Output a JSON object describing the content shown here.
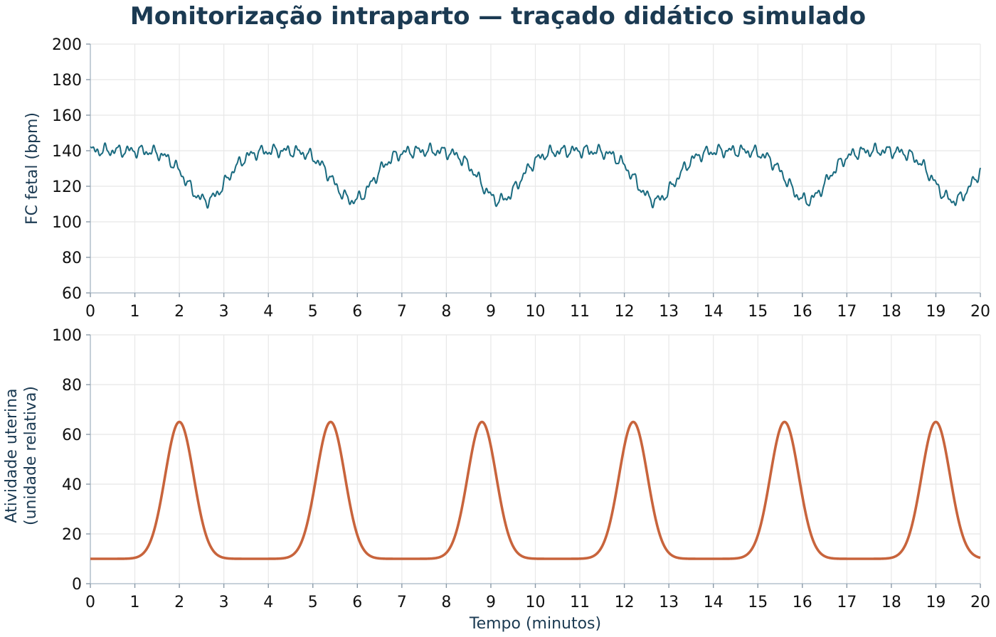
{
  "title": "Monitorização intraparto — traçado didático simulado",
  "colors": {
    "fhr": "#1a6b80",
    "uterine": "#c8643c",
    "title": "#1b3a52"
  },
  "chart_data": [
    {
      "type": "line",
      "ylabel": "FC fetal (bpm)",
      "xlabel": "",
      "xlim": [
        0,
        20
      ],
      "ylim": [
        60,
        200
      ],
      "xticks": [
        "0",
        "1",
        "2",
        "3",
        "4",
        "5",
        "6",
        "7",
        "8",
        "9",
        "10",
        "11",
        "12",
        "13",
        "14",
        "15",
        "16",
        "17",
        "18",
        "19",
        "20"
      ],
      "yticks": [
        "60",
        "80",
        "100",
        "120",
        "140",
        "160",
        "180",
        "200"
      ],
      "grid": true,
      "series": [
        {
          "baseline_bpm": 140,
          "decelerations": [
            {
              "center_min": 2.6,
              "nadir_bpm": 112
            },
            {
              "center_min": 5.9,
              "nadir_bpm": 112
            },
            {
              "center_min": 9.2,
              "nadir_bpm": 112
            },
            {
              "center_min": 12.7,
              "nadir_bpm": 112
            },
            {
              "center_min": 16.1,
              "nadir_bpm": 112
            },
            {
              "center_min": 19.4,
              "nadir_bpm": 112
            }
          ],
          "variability_bpm": 4
        }
      ]
    },
    {
      "type": "line",
      "ylabel": "Atividade uterina\n(unidade relativa)",
      "xlabel": "Tempo (minutos)",
      "xlim": [
        0,
        20
      ],
      "ylim": [
        0,
        100
      ],
      "xticks": [
        "0",
        "1",
        "2",
        "3",
        "4",
        "5",
        "6",
        "7",
        "8",
        "9",
        "10",
        "11",
        "12",
        "13",
        "14",
        "15",
        "16",
        "17",
        "18",
        "19",
        "20"
      ],
      "yticks": [
        "0",
        "20",
        "40",
        "60",
        "80",
        "100"
      ],
      "grid": true,
      "series": [
        {
          "baseline": 10,
          "contractions": [
            {
              "peak_min": 2.0,
              "peak_value": 65
            },
            {
              "peak_min": 5.4,
              "peak_value": 65
            },
            {
              "peak_min": 8.8,
              "peak_value": 65
            },
            {
              "peak_min": 12.2,
              "peak_value": 65
            },
            {
              "peak_min": 15.6,
              "peak_value": 65
            },
            {
              "peak_min": 19.0,
              "peak_value": 65
            }
          ]
        }
      ]
    }
  ]
}
